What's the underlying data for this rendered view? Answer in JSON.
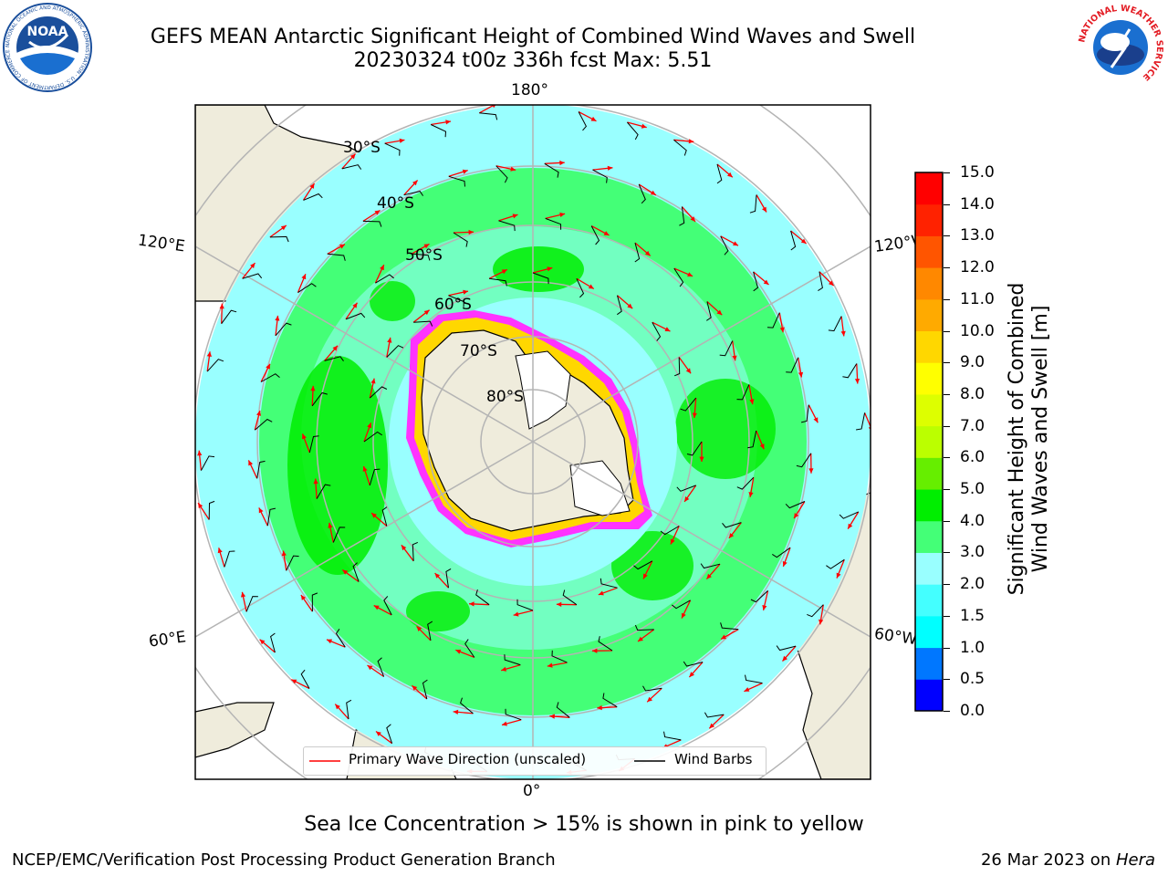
{
  "header": {
    "title_line1": "GEFS MEAN Antarctic Significant Height of Combined Wind Waves and Swell",
    "title_line2": "20230324 t00z 336h fcst   Max: 5.51"
  },
  "logos": {
    "left": "NOAA",
    "left_ring": "NATIONAL OCEANIC AND ATMOSPHERIC ADMINISTRATION · U.S. DEPARTMENT OF COMMERCE",
    "right_ring": "NATIONAL WEATHER SERVICE"
  },
  "map": {
    "projection": "south-polar-stereographic",
    "longitude_labels": {
      "top": "180°",
      "bottom": "0°",
      "upper_left": "120°E",
      "lower_left": "60°E",
      "upper_right": "120°W",
      "lower_right": "60°W"
    },
    "latitude_labels": [
      "30°S",
      "40°S",
      "50°S",
      "60°S",
      "70°S",
      "80°S"
    ],
    "colors": {
      "land": "#efecdc",
      "open_ocean": "#ffffff",
      "sea_ice_edge": "#ff33ff",
      "graticule": "#b4b4b4"
    }
  },
  "colorbar": {
    "label_line1": "Significant Height of Combined",
    "label_line2": "Wind Waves and Swell [m]",
    "ticks": [
      "0.0",
      "0.5",
      "1.0",
      "1.5",
      "2.0",
      "3.0",
      "4.0",
      "5.0",
      "6.0",
      "7.0",
      "8.0",
      "9.0",
      "10.0",
      "11.0",
      "12.0",
      "13.0",
      "14.0",
      "15.0"
    ],
    "colors": [
      "#0000ff",
      "#0077ff",
      "#00ffff",
      "#44ffff",
      "#99ffff",
      "#44ff77",
      "#00ee00",
      "#66ee00",
      "#bbff00",
      "#ddff00",
      "#ffff00",
      "#ffd700",
      "#ffaa00",
      "#ff8800",
      "#ff5500",
      "#ff2200",
      "#ff0000"
    ]
  },
  "legend": {
    "wave_label": "Primary Wave Direction (unscaled)",
    "barb_label": "Wind Barbs",
    "wave_color": "#ff0000",
    "barb_color": "#000000"
  },
  "captions": {
    "sea_ice": "Sea Ice Concentration > 15% is shown in pink to yellow"
  },
  "footer": {
    "left": "NCEP/EMC/Verification Post Processing Product Generation Branch",
    "date": "26 Mar 2023 on ",
    "host": "Hera"
  }
}
